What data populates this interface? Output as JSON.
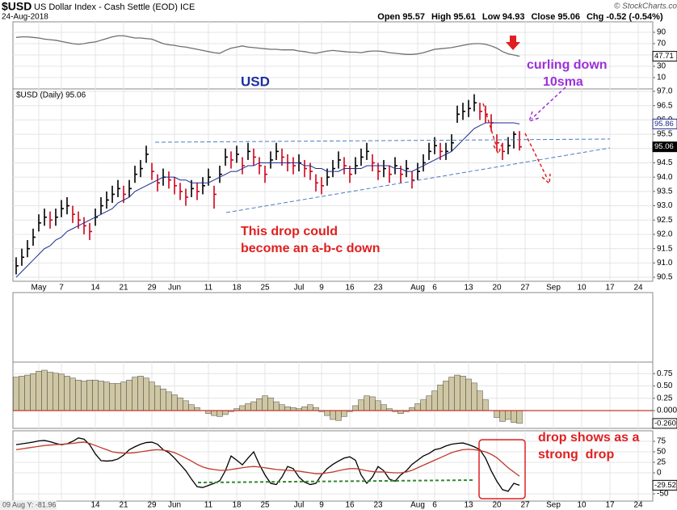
{
  "header": {
    "symbol": "$USD",
    "name": "US Dollar Index - Cash Settle (EOD) ICE",
    "date": "24-Aug-2018",
    "quote": [
      {
        "label": "Open",
        "value": 95.57
      },
      {
        "label": "High",
        "value": 95.61
      },
      {
        "label": "Low",
        "value": 94.93
      },
      {
        "label": "Close",
        "value": 95.06
      },
      {
        "label": "Chg",
        "value": -0.52
      }
    ],
    "change_pct": "(-0.54%)",
    "credit": "© StockCharts.com",
    "crosshair": "09 Aug Y: -81.96"
  },
  "annotations": [
    [
      "USD"
    ],
    [
      "curling down",
      "10sma"
    ],
    [
      "This drop could",
      "become an a-b-c down"
    ],
    [
      "drop shows as a",
      "strong  drop"
    ]
  ],
  "chart_data": {
    "type": "ohlc",
    "price_label": "$USD (Daily) 95.06",
    "up_color": "#000000",
    "down_color": "#d0021b",
    "grid": true,
    "categories": [
      null,
      null,
      null,
      null,
      "May",
      null,
      null,
      null,
      "7",
      null,
      null,
      null,
      null,
      null,
      "14",
      null,
      null,
      null,
      null,
      "21",
      null,
      null,
      null,
      null,
      "29",
      null,
      null,
      null,
      "Jun",
      null,
      null,
      null,
      null,
      null,
      "11",
      null,
      null,
      null,
      null,
      "18",
      null,
      null,
      null,
      null,
      "25",
      null,
      null,
      null,
      null,
      null,
      "Jul",
      null,
      null,
      null,
      "9",
      null,
      null,
      null,
      null,
      "16",
      null,
      null,
      null,
      null,
      "23",
      null,
      null,
      null,
      null,
      null,
      null,
      "Aug",
      null,
      null,
      "6",
      null,
      null,
      null,
      null,
      null,
      "13",
      null,
      null,
      null,
      null,
      "20",
      null,
      null,
      null,
      null,
      "27",
      null,
      null,
      null,
      null,
      "Sep",
      null,
      null,
      null,
      null,
      "10",
      null,
      null,
      null,
      null,
      "17",
      null,
      null,
      null,
      null,
      "24",
      null
    ],
    "high": [
      91.2,
      91.5,
      91.8,
      92.2,
      92.7,
      92.9,
      92.8,
      92.9,
      93.2,
      93.3,
      93.0,
      92.8,
      92.6,
      92.4,
      92.9,
      93.3,
      93.5,
      93.7,
      93.9,
      93.7,
      93.9,
      94.4,
      94.6,
      95.1,
      94.5,
      94.1,
      94.3,
      94.2,
      94.0,
      93.8,
      93.6,
      93.9,
      93.8,
      94.0,
      94.3,
      93.7,
      94.4,
      95.0,
      94.9,
      95.1,
      94.7,
      95.2,
      95.0,
      94.7,
      94.4,
      94.9,
      95.2,
      95.0,
      94.8,
      94.7,
      94.8,
      94.6,
      94.5,
      94.1,
      94.0,
      94.3,
      94.6,
      94.9,
      94.7,
      94.4,
      94.7,
      95.0,
      95.2,
      94.8,
      94.5,
      94.6,
      94.4,
      94.7,
      94.4,
      94.6,
      94.2,
      94.5,
      94.8,
      95.2,
      95.4,
      95.2,
      95.2,
      95.5,
      96.5,
      96.6,
      96.7,
      96.9,
      96.6,
      96.5,
      96.2,
      95.5,
      95.2,
      95.4,
      95.6,
      95.61,
      null,
      null,
      null,
      null,
      null,
      null,
      null,
      null,
      null,
      null,
      null,
      null,
      null,
      null,
      null,
      null,
      null,
      null,
      null,
      null,
      null,
      null
    ],
    "low": [
      90.6,
      90.9,
      91.2,
      91.6,
      92.1,
      92.3,
      92.2,
      92.3,
      92.6,
      92.7,
      92.4,
      92.2,
      92.0,
      91.8,
      92.3,
      92.7,
      92.9,
      93.1,
      93.3,
      93.1,
      93.3,
      93.8,
      94.0,
      94.5,
      93.9,
      93.5,
      93.7,
      93.6,
      93.4,
      93.2,
      93.0,
      93.3,
      93.2,
      93.4,
      93.7,
      92.9,
      93.8,
      94.4,
      94.3,
      94.5,
      94.1,
      94.6,
      94.4,
      94.1,
      93.8,
      94.3,
      94.6,
      94.4,
      94.2,
      94.1,
      94.2,
      94.0,
      93.9,
      93.5,
      93.4,
      93.7,
      94.0,
      94.3,
      94.1,
      93.8,
      94.1,
      94.4,
      94.6,
      94.2,
      93.9,
      94.0,
      93.8,
      94.1,
      93.8,
      94.0,
      93.6,
      93.9,
      94.2,
      94.6,
      94.8,
      94.6,
      94.6,
      94.9,
      95.9,
      96.0,
      96.1,
      96.3,
      96.0,
      95.9,
      95.6,
      94.9,
      94.6,
      94.8,
      95.0,
      94.93,
      null,
      null,
      null,
      null,
      null,
      null,
      null,
      null,
      null,
      null,
      null,
      null,
      null,
      null,
      null,
      null,
      null,
      null,
      null,
      null,
      null,
      null
    ],
    "close": [
      90.9,
      91.2,
      91.5,
      91.9,
      92.4,
      92.6,
      92.5,
      92.6,
      92.9,
      93.0,
      92.7,
      92.5,
      92.3,
      92.1,
      92.6,
      93.0,
      93.2,
      93.4,
      93.6,
      93.4,
      93.6,
      94.1,
      94.3,
      94.8,
      94.2,
      93.8,
      94.0,
      93.9,
      93.7,
      93.5,
      93.3,
      93.6,
      93.5,
      93.7,
      94.0,
      93.4,
      94.1,
      94.7,
      94.6,
      94.8,
      94.4,
      94.9,
      94.7,
      94.4,
      94.1,
      94.6,
      94.9,
      94.7,
      94.5,
      94.4,
      94.5,
      94.3,
      94.2,
      93.8,
      93.7,
      94.0,
      94.3,
      94.6,
      94.4,
      94.1,
      94.4,
      94.7,
      94.9,
      94.5,
      94.2,
      94.3,
      94.1,
      94.4,
      94.1,
      94.3,
      93.9,
      94.2,
      94.5,
      94.9,
      95.1,
      94.9,
      94.9,
      95.2,
      96.2,
      96.3,
      96.4,
      96.6,
      96.3,
      96.2,
      95.9,
      95.2,
      94.9,
      95.1,
      95.5,
      95.06,
      null,
      null,
      null,
      null,
      null,
      null,
      null,
      null,
      null,
      null,
      null,
      null,
      null,
      null,
      null,
      null,
      null,
      null,
      null,
      null,
      null,
      null
    ],
    "sma": {
      "color": "#1c2b8c",
      "values": [
        90.5,
        90.7,
        90.9,
        91.1,
        91.3,
        91.5,
        91.6,
        91.8,
        91.9,
        92.1,
        92.2,
        92.3,
        92.4,
        92.5,
        92.6,
        92.7,
        92.8,
        92.9,
        93.1,
        93.2,
        93.3,
        93.5,
        93.6,
        93.7,
        93.8,
        93.9,
        94.0,
        94.0,
        94.0,
        93.9,
        93.9,
        93.8,
        93.8,
        93.8,
        93.8,
        93.9,
        94.0,
        94.1,
        94.2,
        94.2,
        94.3,
        94.4,
        94.4,
        94.5,
        94.5,
        94.5,
        94.5,
        94.5,
        94.5,
        94.5,
        94.5,
        94.4,
        94.4,
        94.3,
        94.3,
        94.2,
        94.2,
        94.2,
        94.3,
        94.3,
        94.3,
        94.3,
        94.4,
        94.4,
        94.4,
        94.4,
        94.4,
        94.3,
        94.3,
        94.2,
        94.2,
        94.3,
        94.4,
        94.5,
        94.6,
        94.7,
        94.8,
        94.9,
        95.1,
        95.3,
        95.5,
        95.7,
        95.8,
        95.9,
        95.9,
        95.9,
        95.9,
        95.9,
        95.9,
        95.86,
        null,
        null,
        null,
        null,
        null,
        null,
        null,
        null,
        null,
        null,
        null,
        null,
        null,
        null,
        null,
        null,
        null,
        null,
        null,
        null,
        null,
        null
      ]
    },
    "ylim": [
      90.36,
      97.085
    ],
    "yticks": [
      {
        "value": 97,
        "label": "97.0"
      },
      96.5,
      {
        "value": 96,
        "label": "96.0"
      },
      95.5,
      {
        "value": 95,
        "label": "95.0"
      },
      94.5,
      {
        "value": 94,
        "label": "94.0"
      },
      93.5,
      {
        "value": 93,
        "label": "93.0"
      },
      92.5,
      {
        "value": 92,
        "label": "92.0"
      },
      91.5,
      {
        "value": 91,
        "label": "91.0"
      },
      90.5
    ],
    "panels": [
      {
        "type": "line",
        "ylim": [
          -10,
          108.6
        ],
        "yticks": [
          90,
          70,
          50,
          30,
          10
        ],
        "series": [
          {
            "color": "#6f6f6f",
            "values": [
              81,
              82,
              82,
              81,
              80,
              78,
              77,
              76,
              74,
              72,
              70,
              69,
              70,
              72,
              73,
              76,
              79,
              82,
              84,
              84,
              82,
              80,
              80,
              79,
              78,
              74,
              70,
              68,
              67,
              65,
              64,
              62,
              60,
              58,
              56,
              54,
              53,
              58,
              62,
              64,
              66,
              64,
              63,
              62,
              61,
              60,
              60,
              59,
              59,
              59,
              57,
              56,
              54,
              53,
              55,
              57,
              58,
              57,
              56,
              55,
              55,
              54,
              56,
              57,
              57,
              56,
              54,
              53,
              52,
              51,
              51,
              52,
              54,
              57,
              60,
              61,
              62,
              63,
              65,
              67,
              69,
              70,
              70,
              69,
              66,
              62,
              56,
              52,
              50,
              47.71,
              null,
              null,
              null,
              null,
              null,
              null,
              null,
              null,
              null,
              null,
              null,
              null,
              null,
              null,
              null,
              null,
              null,
              null,
              null,
              null,
              null,
              null
            ]
          }
        ]
      },
      {
        "type": "bar",
        "color": "#cfc7a3",
        "edge_color": "#4a4a4a",
        "zero_color": "#c0392b",
        "ylim": [
          -0.36,
          0.984
        ],
        "yticks": [
          0.75,
          {
            "value": 0.5,
            "label": "0.50"
          },
          0.25,
          {
            "value": 0,
            "label": "0.000"
          }
        ],
        "last": {
          "value": -0.26,
          "label": "-0.260"
        },
        "values": [
          0.68,
          0.7,
          0.72,
          0.75,
          0.8,
          0.82,
          0.78,
          0.76,
          0.74,
          0.7,
          0.66,
          0.62,
          0.6,
          0.62,
          0.62,
          0.6,
          0.58,
          0.55,
          0.55,
          0.58,
          0.62,
          0.68,
          0.7,
          0.66,
          0.58,
          0.5,
          0.44,
          0.38,
          0.32,
          0.26,
          0.2,
          0.12,
          0.06,
          0.0,
          -0.06,
          -0.1,
          -0.12,
          -0.08,
          -0.02,
          0.04,
          0.1,
          0.14,
          0.18,
          0.24,
          0.3,
          0.26,
          0.18,
          0.12,
          0.08,
          0.06,
          0.04,
          0.08,
          0.12,
          0.06,
          -0.02,
          -0.1,
          -0.18,
          -0.2,
          -0.12,
          -0.02,
          0.1,
          0.22,
          0.3,
          0.28,
          0.2,
          0.12,
          0.04,
          -0.02,
          -0.06,
          -0.02,
          0.06,
          0.14,
          0.22,
          0.3,
          0.4,
          0.52,
          0.6,
          0.68,
          0.72,
          0.7,
          0.64,
          0.56,
          0.4,
          0.22,
          0.0,
          -0.14,
          -0.22,
          -0.18,
          -0.24,
          -0.26,
          null,
          null,
          null,
          null,
          null,
          null,
          null,
          null,
          null,
          null,
          null,
          null,
          null,
          null,
          null,
          null,
          null,
          null,
          null,
          null,
          null,
          null
        ]
      },
      {
        "type": "line",
        "ylim": [
          -67.3,
          100
        ],
        "yticks": [
          75,
          50,
          25,
          0,
          -50
        ],
        "series": [
          {
            "color": "#000000",
            "values": [
              67,
              69,
              71,
              73,
              76,
              77,
              74,
              70,
              67,
              69,
              75,
              83,
              80,
              67,
              45,
              29,
              28,
              29,
              33,
              42,
              55,
              62,
              68,
              72,
              73,
              68,
              55,
              48,
              35,
              20,
              5,
              -15,
              -33,
              -35,
              -30,
              -25,
              -19,
              5,
              40,
              30,
              19,
              35,
              50,
              20,
              -5,
              -25,
              -28,
              -10,
              15,
              10,
              -10,
              -22,
              -28,
              -25,
              -5,
              10,
              20,
              28,
              35,
              38,
              30,
              -5,
              -25,
              -10,
              15,
              5,
              -15,
              -20,
              -5,
              5,
              20,
              30,
              40,
              46,
              55,
              58,
              64,
              68,
              70,
              71,
              67,
              62,
              55,
              35,
              5,
              -20,
              -40,
              -44,
              -25,
              -29.52,
              null,
              null,
              null,
              null,
              null,
              null,
              null,
              null,
              null,
              null,
              null,
              null,
              null,
              null,
              null,
              null,
              null,
              null,
              null,
              null,
              null,
              null
            ]
          },
          {
            "color": "#c0392b",
            "values": [
              55,
              57,
              59,
              61,
              63,
              65,
              66,
              67,
              68,
              69,
              70,
              72,
              73,
              70,
              65,
              60,
              55,
              50,
              48,
              47,
              47,
              48,
              50,
              52,
              54,
              55,
              54,
              52,
              48,
              42,
              35,
              28,
              20,
              14,
              10,
              8,
              6,
              6,
              8,
              10,
              12,
              14,
              15,
              14,
              12,
              10,
              8,
              7,
              6,
              5,
              4,
              2,
              0,
              -2,
              -2,
              0,
              2,
              5,
              8,
              10,
              10,
              8,
              5,
              3,
              2,
              2,
              1,
              0,
              0,
              2,
              6,
              12,
              18,
              24,
              30,
              36,
              42,
              48,
              52,
              55,
              56,
              55,
              53,
              50,
              44,
              36,
              24,
              12,
              2,
              -8,
              null,
              null,
              null,
              null,
              null,
              null,
              null,
              null,
              null,
              null,
              null,
              null,
              null,
              null,
              null,
              null,
              null,
              null,
              null,
              null,
              null,
              null
            ]
          }
        ]
      }
    ]
  }
}
